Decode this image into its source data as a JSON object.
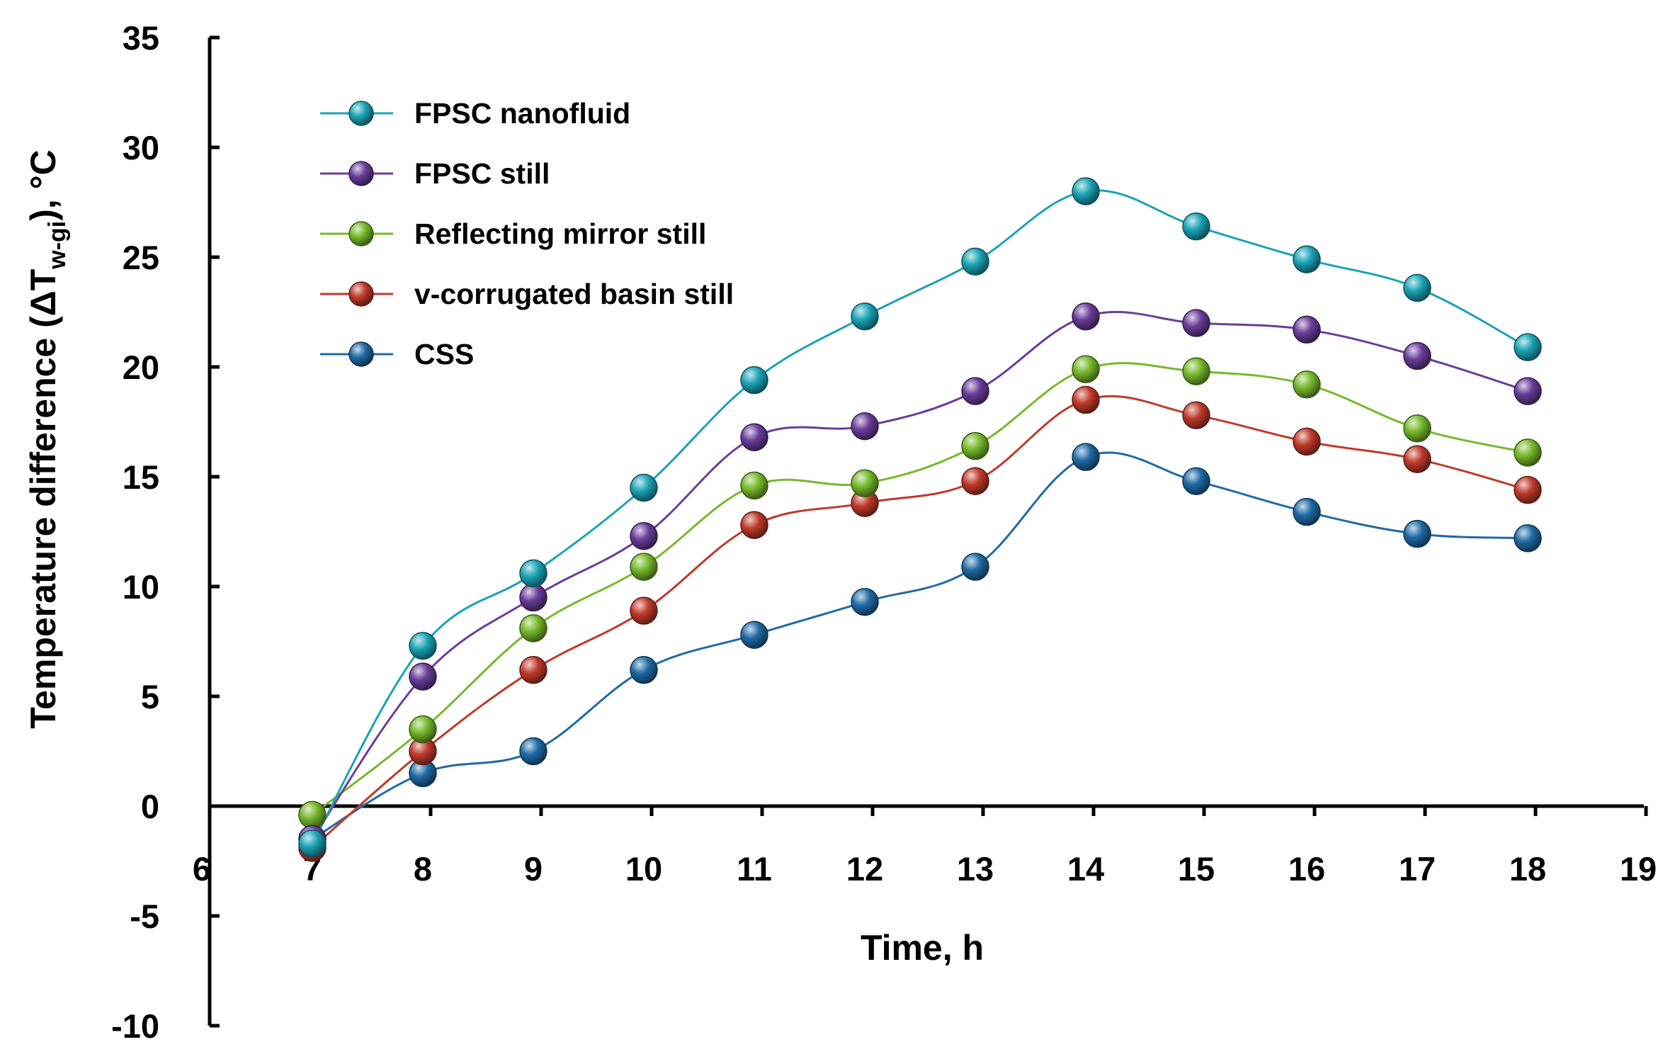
{
  "chart_data": {
    "type": "line",
    "title": "",
    "xlabel": "Time, h",
    "ylabel": {
      "prefix": "Temperature difference (ΔT",
      "subscript": "w-gi",
      "suffix": "), °C"
    },
    "xlim": [
      6,
      19
    ],
    "ylim": [
      -10,
      35
    ],
    "x_ticks": [
      6,
      7,
      8,
      9,
      10,
      11,
      12,
      13,
      14,
      15,
      16,
      17,
      18,
      19
    ],
    "y_ticks": [
      -10,
      -5,
      0,
      5,
      10,
      15,
      20,
      25,
      30,
      35
    ],
    "grid": false,
    "legend_position": "top-left",
    "x": [
      7,
      8,
      9,
      10,
      11,
      12,
      13,
      14,
      15,
      16,
      17,
      18
    ],
    "series": [
      {
        "name": "FPSC nanofluid",
        "color": "#1aa3b5",
        "values": [
          -1.7,
          7.3,
          10.6,
          14.5,
          19.4,
          22.3,
          24.8,
          28.0,
          26.4,
          24.9,
          23.6,
          20.9
        ]
      },
      {
        "name": "FPSC still",
        "color": "#6a3d9a",
        "values": [
          -1.5,
          5.9,
          9.5,
          12.3,
          16.8,
          17.3,
          18.9,
          22.3,
          22.0,
          21.7,
          20.5,
          18.9
        ]
      },
      {
        "name": "Reflecting mirror still",
        "color": "#76b82a",
        "values": [
          -0.4,
          3.5,
          8.1,
          10.9,
          14.6,
          14.7,
          16.4,
          19.9,
          19.8,
          19.2,
          17.2,
          16.1
        ]
      },
      {
        "name": "v-corrugated basin still",
        "color": "#c0392b",
        "values": [
          -1.9,
          2.5,
          6.2,
          8.9,
          12.8,
          13.8,
          14.8,
          18.5,
          17.8,
          16.6,
          15.8,
          14.4
        ]
      },
      {
        "name": "CSS",
        "color": "#1f6aa5",
        "values": [
          -1.5,
          1.5,
          2.5,
          6.2,
          7.8,
          9.3,
          10.9,
          15.9,
          14.8,
          13.4,
          12.4,
          12.2
        ]
      }
    ]
  }
}
